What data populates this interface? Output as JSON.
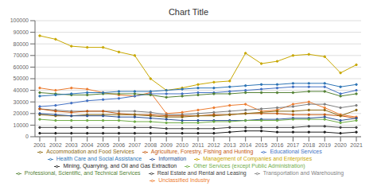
{
  "chart_data": {
    "type": "line",
    "title": "Chart Title",
    "x": [
      2001,
      2002,
      2003,
      2004,
      2005,
      2006,
      2007,
      2008,
      2009,
      2010,
      2011,
      2012,
      2013,
      2014,
      2015,
      2016,
      2017,
      2018,
      2019,
      2020,
      2021
    ],
    "series": [
      {
        "name": "Unclassified Industry",
        "color": "#ED7D31",
        "values": [
          42000,
          40000,
          42000,
          41000,
          38000,
          36000,
          35000,
          38000,
          20000,
          21000,
          23000,
          25000,
          27000,
          28000,
          22000,
          23000,
          28000,
          30000,
          25000,
          19000,
          17000
        ]
      },
      {
        "name": "Transportation and Warehousing",
        "color": "#7F7F7F",
        "values": [
          24000,
          23000,
          22000,
          22000,
          22000,
          22000,
          22000,
          21000,
          19000,
          19000,
          20000,
          21000,
          22000,
          23000,
          24000,
          25000,
          26000,
          28000,
          28000,
          25000,
          27000
        ]
      },
      {
        "name": "Management of Companies and Enterprises",
        "color": "#C8A800",
        "values": [
          87000,
          84000,
          78000,
          77000,
          77000,
          73000,
          70000,
          50000,
          40000,
          42000,
          45000,
          47000,
          48000,
          72000,
          63000,
          65000,
          70000,
          71000,
          69000,
          55000,
          62000
        ]
      },
      {
        "name": "Educational Services",
        "color": "#4472C4",
        "values": [
          26000,
          27000,
          29000,
          31000,
          32000,
          33000,
          35000,
          37000,
          37000,
          37000,
          38000,
          38000,
          39000,
          40000,
          41000,
          42000,
          43000,
          43000,
          43000,
          37000,
          40000
        ]
      },
      {
        "name": "Professional, Scientific, and Technical Services",
        "color": "#548235",
        "values": [
          38000,
          37000,
          36000,
          36000,
          37000,
          37000,
          37000,
          36000,
          34000,
          35000,
          36000,
          37000,
          37000,
          38000,
          38000,
          38000,
          38000,
          39000,
          39000,
          35000,
          37000
        ]
      },
      {
        "name": "Health Care and Social Assistance",
        "color": "#2E75B6",
        "values": [
          35000,
          36000,
          37000,
          38000,
          38000,
          39000,
          39000,
          39000,
          40000,
          41000,
          42000,
          42000,
          43000,
          44000,
          45000,
          45000,
          46000,
          46000,
          46000,
          43000,
          45000
        ]
      },
      {
        "name": "Agriculture, Forestry, Fishing and Hunting",
        "color": "#C55A11",
        "values": [
          24000,
          22000,
          21000,
          22000,
          22000,
          20000,
          19000,
          19000,
          18000,
          18000,
          18000,
          19000,
          19000,
          20000,
          20000,
          20000,
          19000,
          19000,
          19000,
          18000,
          16000
        ]
      },
      {
        "name": "Real Estate and Rental and Leasing",
        "color": "#404040",
        "values": [
          8000,
          8000,
          8000,
          8000,
          8000,
          8000,
          8000,
          8000,
          7000,
          7000,
          7000,
          7000,
          8000,
          8000,
          8000,
          8000,
          8000,
          9000,
          9000,
          8000,
          8000
        ]
      },
      {
        "name": "Accommodation and Food Services",
        "color": "#8B6914",
        "values": [
          19000,
          18000,
          18000,
          19000,
          19000,
          19000,
          19000,
          18000,
          17000,
          17000,
          18000,
          18000,
          19000,
          20000,
          21000,
          22000,
          22000,
          23000,
          23000,
          18000,
          23000
        ]
      },
      {
        "name": "Information",
        "color": "#2F5496",
        "values": [
          20000,
          19000,
          18000,
          18000,
          18000,
          17000,
          17000,
          16000,
          15000,
          14000,
          14000,
          14000,
          14000,
          14000,
          15000,
          15000,
          16000,
          16000,
          17000,
          14000,
          16000
        ]
      },
      {
        "name": "Mining, Quarrying, and Oil and Gas Extraction",
        "color": "#1F1F1F",
        "values": [
          3000,
          3000,
          3000,
          3000,
          3000,
          3000,
          3000,
          3000,
          3000,
          3000,
          3000,
          3000,
          4000,
          5000,
          5000,
          4000,
          4000,
          4000,
          4000,
          3000,
          4000
        ]
      },
      {
        "name": "Other Services (except Public Administration)",
        "color": "#70AD47",
        "values": [
          15000,
          14000,
          14000,
          14000,
          14000,
          14000,
          13000,
          13000,
          12000,
          12000,
          12000,
          13000,
          13000,
          14000,
          14000,
          14000,
          15000,
          15000,
          15000,
          12000,
          14000
        ]
      }
    ],
    "xlim": [
      2000.7,
      2021.3
    ],
    "xticks": [
      2001,
      2002,
      2003,
      2004,
      2005,
      2006,
      2007,
      2008,
      2009,
      2010,
      2011,
      2012,
      2013,
      2014,
      2015,
      2016,
      2017,
      2018,
      2019,
      2020,
      2021
    ],
    "ylim": [
      0,
      100000
    ],
    "yticks": [
      0,
      10000,
      20000,
      30000,
      40000,
      50000,
      60000,
      70000,
      80000,
      90000,
      100000
    ],
    "grid": "y",
    "legend": "bottom",
    "marker": "circle"
  }
}
